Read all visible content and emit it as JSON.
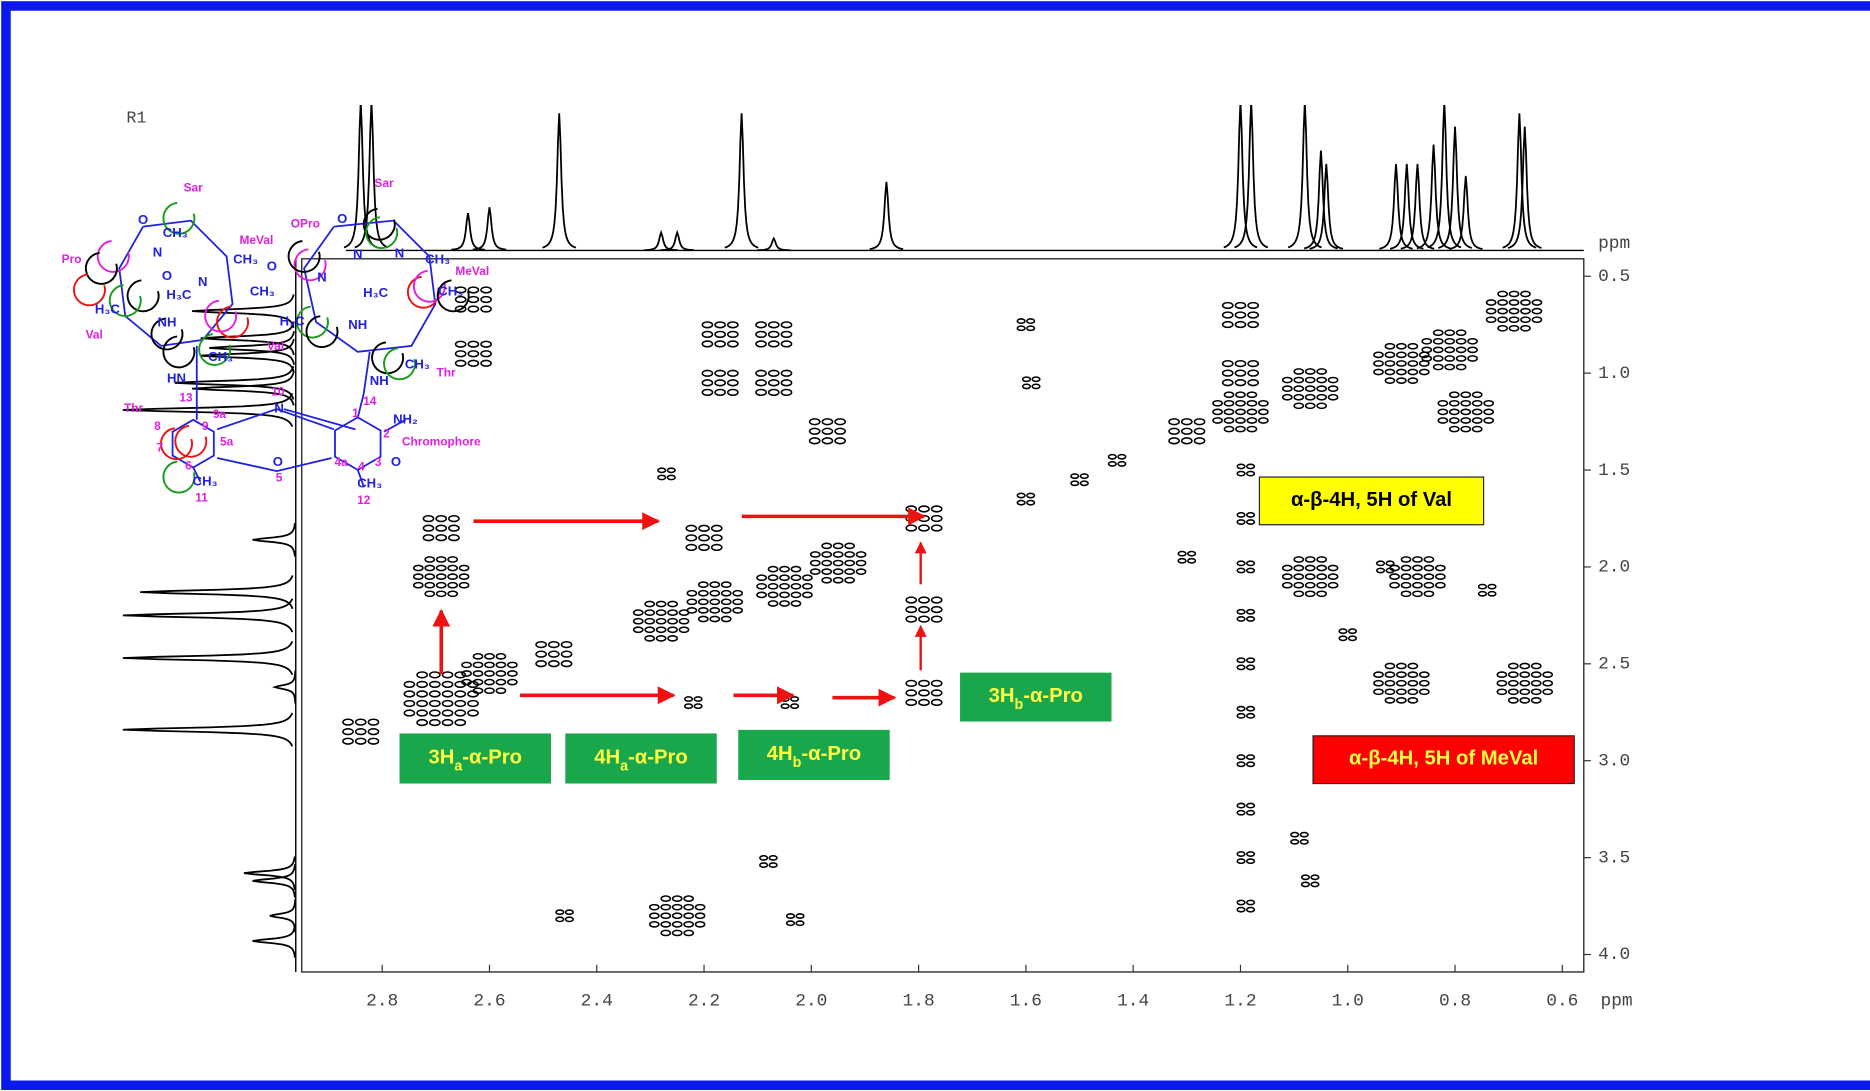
{
  "chart_data": {
    "type": "scatter",
    "title": "R1",
    "x_label": "ppm",
    "y_label": "ppm",
    "xlim": [
      2.95,
      0.56
    ],
    "ylim": [
      0.41,
      4.09
    ],
    "xticks": [
      2.8,
      2.6,
      2.4,
      2.2,
      {
        "value": 2,
        "label": "2.0"
      },
      1.8,
      1.6,
      1.4,
      1.2,
      {
        "value": 1,
        "label": "1.0"
      },
      0.8,
      0.6
    ],
    "yticks": [
      0.5,
      {
        "value": 1,
        "label": "1.0"
      },
      1.5,
      {
        "value": 2,
        "label": "2.0"
      },
      2.5,
      {
        "value": 3,
        "label": "3.0"
      },
      3.5,
      {
        "value": 4,
        "label": "4.0"
      }
    ],
    "color": "#000000",
    "x": [
      2.63,
      2.63,
      2.17,
      2.07,
      2.17,
      2.07,
      1.97,
      2.27,
      1.6,
      1.59,
      2.69,
      2.6,
      2.48,
      2.28,
      2.18,
      2.05,
      1.95,
      1.6,
      1.5,
      1.43,
      1.3,
      1.2,
      1.07,
      0.9,
      0.81,
      0.69,
      2.69,
      2.69,
      2.2,
      1.79,
      1.79,
      1.79,
      2.22,
      2.04,
      2.84,
      1.2,
      1.2,
      1.19,
      1.19,
      1.19,
      1.19,
      1.19,
      1.19,
      1.19,
      1.19,
      1.19,
      1.19,
      1.07,
      0.78,
      0.87,
      0.74,
      0.9,
      0.67,
      1.0,
      1.07,
      1.09,
      2.25,
      2.03,
      2.08,
      2.46,
      1.3,
      0.93
    ],
    "values": [
      0.62,
      0.9,
      0.8,
      0.8,
      1.05,
      1.05,
      1.3,
      1.52,
      0.75,
      1.05,
      2.68,
      2.55,
      2.45,
      2.28,
      2.18,
      2.1,
      1.98,
      1.65,
      1.55,
      1.45,
      1.3,
      1.2,
      1.08,
      0.95,
      0.88,
      0.68,
      1.8,
      2.05,
      1.85,
      1.75,
      2.22,
      2.65,
      2.7,
      2.7,
      2.85,
      0.7,
      1.0,
      1.5,
      1.75,
      2.0,
      2.25,
      2.5,
      2.75,
      3.0,
      3.25,
      3.5,
      3.75,
      2.05,
      1.2,
      2.05,
      2.12,
      2.6,
      2.6,
      2.35,
      3.62,
      3.4,
      3.8,
      3.82,
      3.52,
      3.8,
      1.95,
      2.0
    ],
    "sizes": [
      2,
      2,
      2,
      2,
      2,
      2,
      2,
      1,
      1,
      1,
      4,
      3,
      2,
      3,
      3,
      3,
      3,
      1,
      1,
      1,
      2,
      3,
      3,
      3,
      3,
      3,
      2,
      3,
      2,
      2,
      2,
      2,
      1,
      1,
      2,
      2,
      2,
      1,
      1,
      1,
      1,
      1,
      1,
      1,
      1,
      1,
      1,
      3,
      3,
      3,
      1,
      3,
      3,
      1,
      1,
      1,
      3,
      1,
      1,
      1,
      1,
      1
    ],
    "top_projection": {
      "x": [
        2.84,
        2.82,
        2.64,
        2.6,
        2.47,
        2.28,
        2.25,
        2.13,
        2.07,
        1.86,
        1.2,
        1.18,
        1.08,
        1.05,
        1.04,
        0.91,
        0.89,
        0.87,
        0.84,
        0.82,
        0.8,
        0.78,
        0.68,
        0.67
      ],
      "values": [
        100,
        100,
        25,
        29,
        92,
        12,
        12,
        92,
        8,
        46,
        100,
        100,
        100,
        67,
        58,
        58,
        58,
        58,
        71,
        100,
        83,
        50,
        92,
        83
      ]
    },
    "left_projection": {
      "y": [
        0.68,
        0.82,
        0.87,
        0.91,
        1.05,
        1.08,
        1.19,
        1.86,
        2.13,
        2.25,
        2.47,
        2.62,
        2.84,
        3.58,
        3.62,
        3.8,
        3.93
      ],
      "values": [
        60,
        55,
        50,
        55,
        70,
        60,
        100,
        25,
        90,
        100,
        100,
        12,
        100,
        30,
        25,
        15,
        25
      ]
    },
    "annotations": [
      {
        "text": "3H",
        "sub": "a",
        "rest": "-α-Pro",
        "color": "#1aa64a"
      },
      {
        "text": "4H",
        "sub": "a",
        "rest": "-α-Pro",
        "color": "#1aa64a"
      },
      {
        "text": "4H",
        "sub": "b",
        "rest": "-α-Pro",
        "color": "#1aa64a"
      },
      {
        "text": "3H",
        "sub": "b",
        "rest": "-α-Pro",
        "color": "#1aa64a"
      },
      {
        "text": "α-β-4H, 5H of Val",
        "color": "#ffff00"
      },
      {
        "text": "α-β-4H, 5H of MeVal",
        "color": "#ff0000"
      }
    ]
  },
  "structure": {
    "labels": [
      {
        "text": "Sar",
        "color": "#e020e0"
      },
      {
        "text": "Sar",
        "color": "#e020e0"
      },
      {
        "text": "MeVal",
        "color": "#e020e0"
      },
      {
        "text": "OPro",
        "color": "#e020e0"
      },
      {
        "text": "MeVal",
        "color": "#e020e0"
      },
      {
        "text": "Pro",
        "color": "#e020e0"
      },
      {
        "text": "Val",
        "color": "#e020e0"
      },
      {
        "text": "Val",
        "color": "#e020e0"
      },
      {
        "text": "Thr",
        "color": "#e020e0"
      },
      {
        "text": "Thr",
        "color": "#e020e0"
      },
      {
        "text": "Chromophore",
        "color": "#e020e0"
      },
      {
        "text": "13",
        "color": "#e020e0"
      },
      {
        "text": "10",
        "color": "#e020e0"
      },
      {
        "text": "1",
        "color": "#e020e0"
      },
      {
        "text": "2",
        "color": "#e020e0"
      },
      {
        "text": "9a",
        "color": "#e020e0"
      },
      {
        "text": "9",
        "color": "#e020e0"
      },
      {
        "text": "8",
        "color": "#e020e0"
      },
      {
        "text": "7",
        "color": "#e020e0"
      },
      {
        "text": "5a",
        "color": "#e020e0"
      },
      {
        "text": "6",
        "color": "#e020e0"
      },
      {
        "text": "11",
        "color": "#e020e0"
      },
      {
        "text": "5",
        "color": "#e020e0"
      },
      {
        "text": "4a",
        "color": "#e020e0"
      },
      {
        "text": "3",
        "color": "#e020e0"
      },
      {
        "text": "4",
        "color": "#e020e0"
      },
      {
        "text": "12",
        "color": "#e020e0"
      },
      {
        "text": "14",
        "color": "#e020e0"
      },
      {
        "text": "NH₂",
        "color": "#2020e0"
      },
      {
        "text": "CH₃",
        "color": "#2020e0"
      },
      {
        "text": "CH₃",
        "color": "#2020e0"
      },
      {
        "text": "N",
        "color": "#2020e0"
      },
      {
        "text": "O",
        "color": "#2020e0"
      },
      {
        "text": "O",
        "color": "#2020e0"
      },
      {
        "text": "CH₃",
        "color": "#2020e0"
      },
      {
        "text": "CH₃",
        "color": "#2020e0"
      },
      {
        "text": "H₃C",
        "color": "#2020e0"
      },
      {
        "text": "CH₃",
        "color": "#2020e0"
      },
      {
        "text": "N",
        "color": "#2020e0"
      },
      {
        "text": "N",
        "color": "#2020e0"
      },
      {
        "text": "O",
        "color": "#2020e0"
      },
      {
        "text": "O",
        "color": "#2020e0"
      },
      {
        "text": "CH₃",
        "color": "#2020e0"
      },
      {
        "text": "H₃C",
        "color": "#2020e0"
      },
      {
        "text": "N",
        "color": "#2020e0"
      },
      {
        "text": "N",
        "color": "#2020e0"
      },
      {
        "text": "N",
        "color": "#2020e0"
      },
      {
        "text": "O",
        "color": "#2020e0"
      },
      {
        "text": "NH",
        "color": "#2020e0"
      },
      {
        "text": "NH",
        "color": "#2020e0"
      },
      {
        "text": "HN",
        "color": "#2020e0"
      },
      {
        "text": "NH",
        "color": "#2020e0"
      },
      {
        "text": "H₃C",
        "color": "#2020e0"
      },
      {
        "text": "H₃C",
        "color": "#2020e0"
      },
      {
        "text": "CH₃",
        "color": "#2020e0"
      },
      {
        "text": "CH₃",
        "color": "#2020e0"
      },
      {
        "text": "CH₃",
        "color": "#2020e0"
      },
      {
        "text": "O",
        "color": "#2020e0"
      }
    ]
  }
}
